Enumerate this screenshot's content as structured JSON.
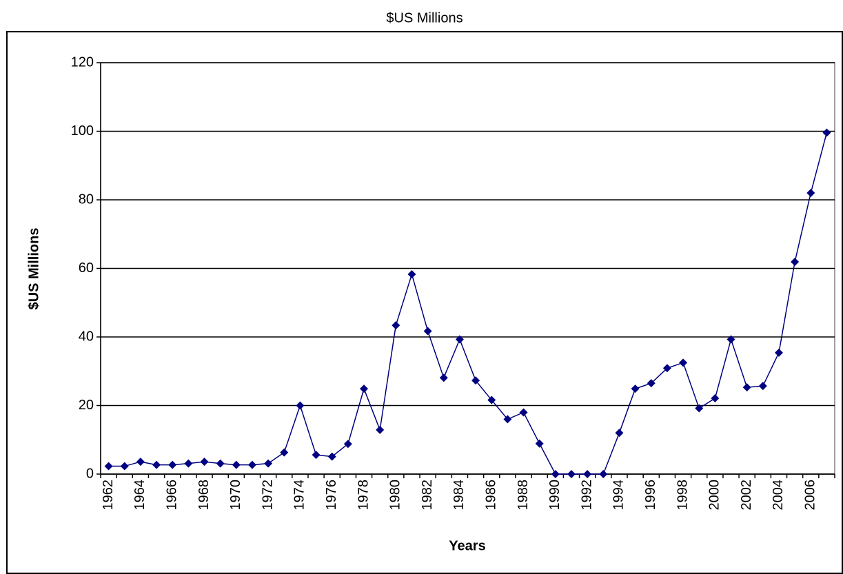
{
  "chart_data": {
    "type": "line",
    "title": "$US Millions",
    "x_label": "Years",
    "y_label": "$US Millions",
    "categories": [
      "1962",
      null,
      "1964",
      null,
      "1966",
      null,
      "1968",
      null,
      "1970",
      null,
      "1972",
      null,
      "1974",
      null,
      "1976",
      null,
      "1978",
      null,
      "1980",
      null,
      "1982",
      null,
      "1984",
      null,
      "1986",
      null,
      "1988",
      null,
      "1990",
      null,
      "1992",
      null,
      "1994",
      null,
      "1996",
      null,
      "1998",
      null,
      "2000",
      null,
      "2002",
      null,
      "2004",
      null,
      "2006",
      null
    ],
    "series": [
      {
        "name": "$US Millions",
        "color": "#000080",
        "values": [
          2.3,
          2.3,
          3.6,
          2.7,
          2.7,
          3.1,
          3.6,
          3.1,
          2.7,
          2.7,
          3.1,
          6.3,
          20,
          5.6,
          5.1,
          8.8,
          24.9,
          12.9,
          43.4,
          58.3,
          41.7,
          28.1,
          39.3,
          27.3,
          21.6,
          16,
          18,
          8.9,
          0,
          0,
          0,
          0,
          12,
          24.9,
          26.5,
          30.9,
          32.5,
          19.2,
          22.1,
          39.3,
          25.3,
          25.7,
          35.4,
          61.9,
          82,
          99.6
        ]
      }
    ],
    "ylim": [
      0,
      120
    ],
    "yticks": [
      0,
      20,
      40,
      60,
      80,
      100,
      120
    ],
    "grid": true
  }
}
